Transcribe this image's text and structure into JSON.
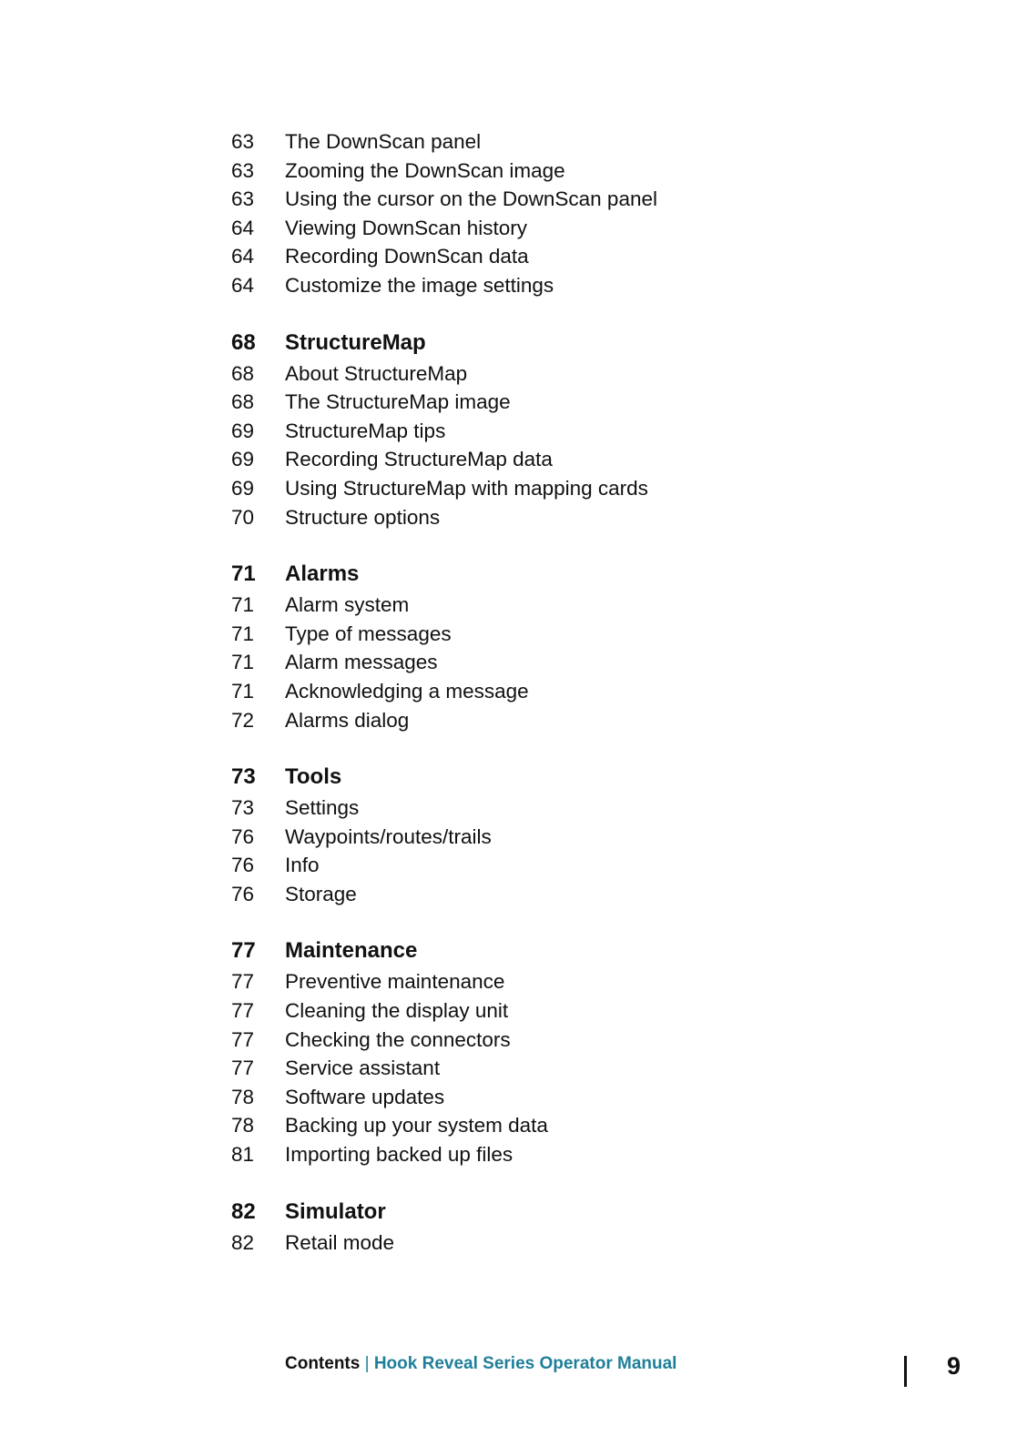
{
  "sections": [
    {
      "heading": null,
      "items": [
        {
          "page": "63",
          "title": "The DownScan panel"
        },
        {
          "page": "63",
          "title": "Zooming the DownScan image"
        },
        {
          "page": "63",
          "title": "Using the cursor on the DownScan panel"
        },
        {
          "page": "64",
          "title": "Viewing DownScan history"
        },
        {
          "page": "64",
          "title": "Recording DownScan data"
        },
        {
          "page": "64",
          "title": "Customize the image settings"
        }
      ]
    },
    {
      "heading": {
        "page": "68",
        "title": "StructureMap"
      },
      "items": [
        {
          "page": "68",
          "title": "About StructureMap"
        },
        {
          "page": "68",
          "title": "The StructureMap image"
        },
        {
          "page": "69",
          "title": "StructureMap tips"
        },
        {
          "page": "69",
          "title": "Recording StructureMap data"
        },
        {
          "page": "69",
          "title": "Using StructureMap with mapping cards"
        },
        {
          "page": "70",
          "title": "Structure options"
        }
      ]
    },
    {
      "heading": {
        "page": "71",
        "title": "Alarms"
      },
      "items": [
        {
          "page": "71",
          "title": "Alarm system"
        },
        {
          "page": "71",
          "title": "Type of messages"
        },
        {
          "page": "71",
          "title": "Alarm messages"
        },
        {
          "page": "71",
          "title": "Acknowledging a message"
        },
        {
          "page": "72",
          "title": "Alarms dialog"
        }
      ]
    },
    {
      "heading": {
        "page": "73",
        "title": "Tools"
      },
      "items": [
        {
          "page": "73",
          "title": "Settings"
        },
        {
          "page": "76",
          "title": "Waypoints/routes/trails"
        },
        {
          "page": "76",
          "title": "Info"
        },
        {
          "page": "76",
          "title": "Storage"
        }
      ]
    },
    {
      "heading": {
        "page": "77",
        "title": "Maintenance"
      },
      "items": [
        {
          "page": "77",
          "title": "Preventive maintenance"
        },
        {
          "page": "77",
          "title": "Cleaning the display unit"
        },
        {
          "page": "77",
          "title": "Checking the connectors"
        },
        {
          "page": "77",
          "title": "Service assistant"
        },
        {
          "page": "78",
          "title": "Software updates"
        },
        {
          "page": "78",
          "title": "Backing up your system data"
        },
        {
          "page": "81",
          "title": "Importing backed up files"
        }
      ]
    },
    {
      "heading": {
        "page": "82",
        "title": "Simulator"
      },
      "items": [
        {
          "page": "82",
          "title": "Retail mode"
        }
      ]
    }
  ],
  "footer": {
    "section": "Contents",
    "separator": "|",
    "manual": "Hook Reveal Series Operator Manual",
    "page_number": "9",
    "accent_color": "#1f7f98"
  }
}
